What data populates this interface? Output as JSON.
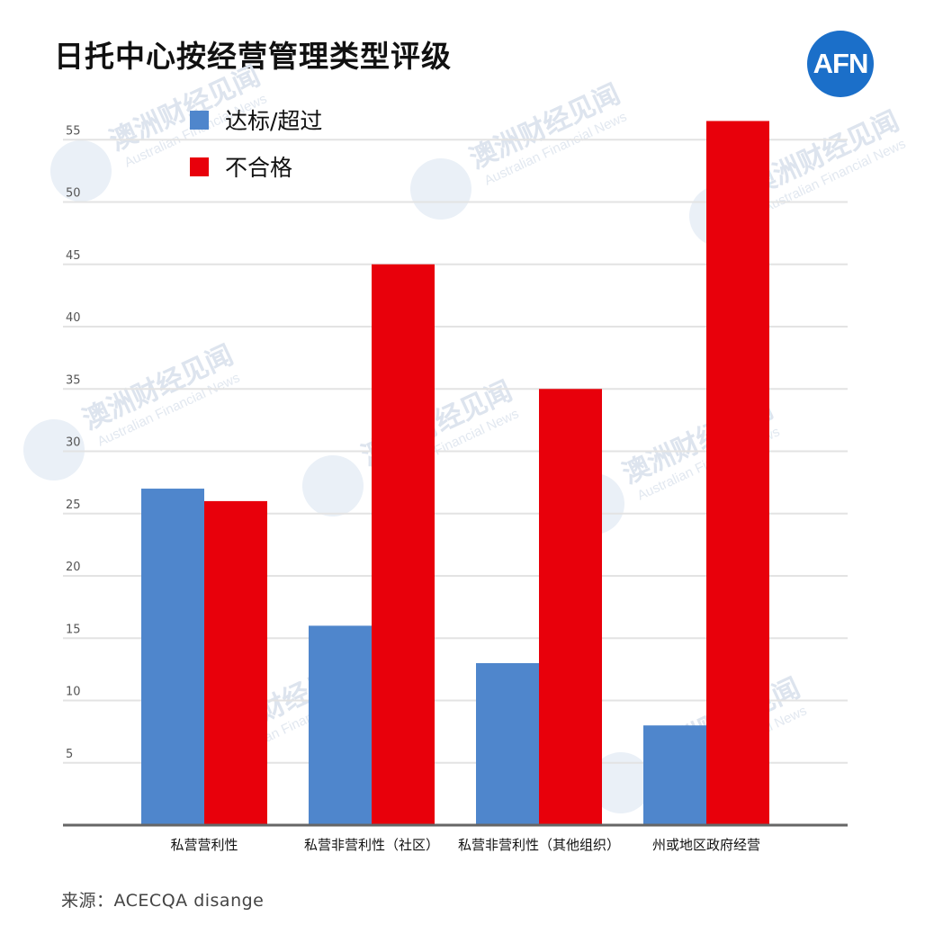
{
  "title": "日托中心按经营管理类型评级",
  "logo": {
    "text": "AFN"
  },
  "source": "来源：ACECQA  disange",
  "watermark": {
    "text": "澳洲财经见闻",
    "sub": "Australian Financial News"
  },
  "colors": {
    "series_a": "#4f86cc",
    "series_b": "#e8000b",
    "grid": "#e3e3e3",
    "axis": "#666666",
    "logo": "#1b6fc9"
  },
  "chart_data": {
    "type": "bar",
    "categories": [
      "私营营利性",
      "私营非营利性（社区）",
      "私营非营利性（其他组织）",
      "州或地区政府经营"
    ],
    "series": [
      {
        "name": "达标/超过",
        "values": [
          27,
          16,
          13,
          8
        ]
      },
      {
        "name": "不合格",
        "values": [
          26,
          45,
          35,
          56.5
        ]
      }
    ],
    "yticks": [
      5,
      10,
      15,
      20,
      25,
      30,
      35,
      40,
      45,
      50,
      55
    ],
    "ylim": [
      0,
      58
    ],
    "grid": true,
    "legend": "top-left"
  }
}
